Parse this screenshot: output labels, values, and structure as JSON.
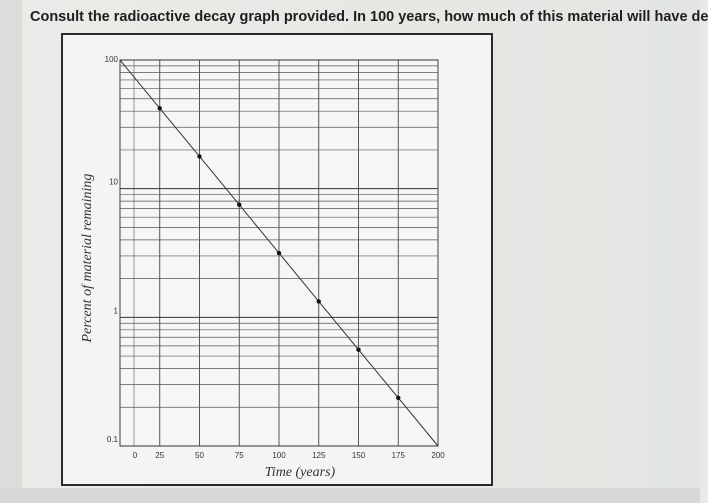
{
  "question": {
    "text": "Consult the radioactive decay graph provided.  In 100 years, how much of this material will have de"
  },
  "chart_data": {
    "type": "line",
    "title": "",
    "xlabel": "Time (years)",
    "ylabel": "Percent of material remaining",
    "xscale": "linear",
    "yscale": "log",
    "xlim": [
      0,
      200
    ],
    "ylim": [
      0.1,
      100
    ],
    "xticks": [
      0,
      25,
      50,
      75,
      100,
      125,
      150,
      175,
      200
    ],
    "xtick_labels": [
      "0",
      "25",
      "50",
      "75",
      "100",
      "125",
      "150",
      "175",
      "200"
    ],
    "yticks": [
      0.1,
      1,
      10,
      100
    ],
    "ytick_labels": [
      "0.1",
      "1",
      "10",
      "100"
    ],
    "grid": true,
    "legend": "none",
    "line_color": "#333333",
    "series": [
      {
        "x": [
          0,
          25,
          50,
          75,
          100,
          125,
          150,
          175,
          200
        ],
        "y": [
          100,
          42.1,
          17.8,
          7.5,
          3.16,
          1.33,
          0.56,
          0.237,
          0.1
        ],
        "markers": [
          25,
          50,
          75,
          100,
          125,
          150,
          175
        ]
      }
    ]
  }
}
